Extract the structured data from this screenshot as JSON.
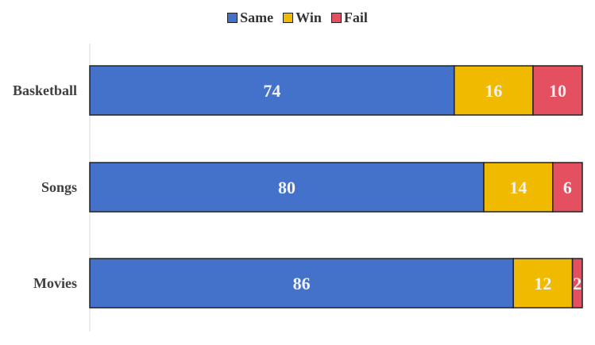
{
  "chart_data": {
    "type": "bar",
    "orientation": "horizontal",
    "stacked": true,
    "categories": [
      "Basketball",
      "Songs",
      "Movies"
    ],
    "series": [
      {
        "name": "Same",
        "values": [
          74,
          80,
          86
        ],
        "color": "#4472CA"
      },
      {
        "name": "Win",
        "values": [
          16,
          14,
          12
        ],
        "color": "#F0BA00"
      },
      {
        "name": "Fail",
        "values": [
          10,
          6,
          2
        ],
        "color": "#E4505F"
      }
    ],
    "xlim": [
      0,
      100
    ],
    "legend_position": "top",
    "grid": false,
    "data_labels": true
  }
}
